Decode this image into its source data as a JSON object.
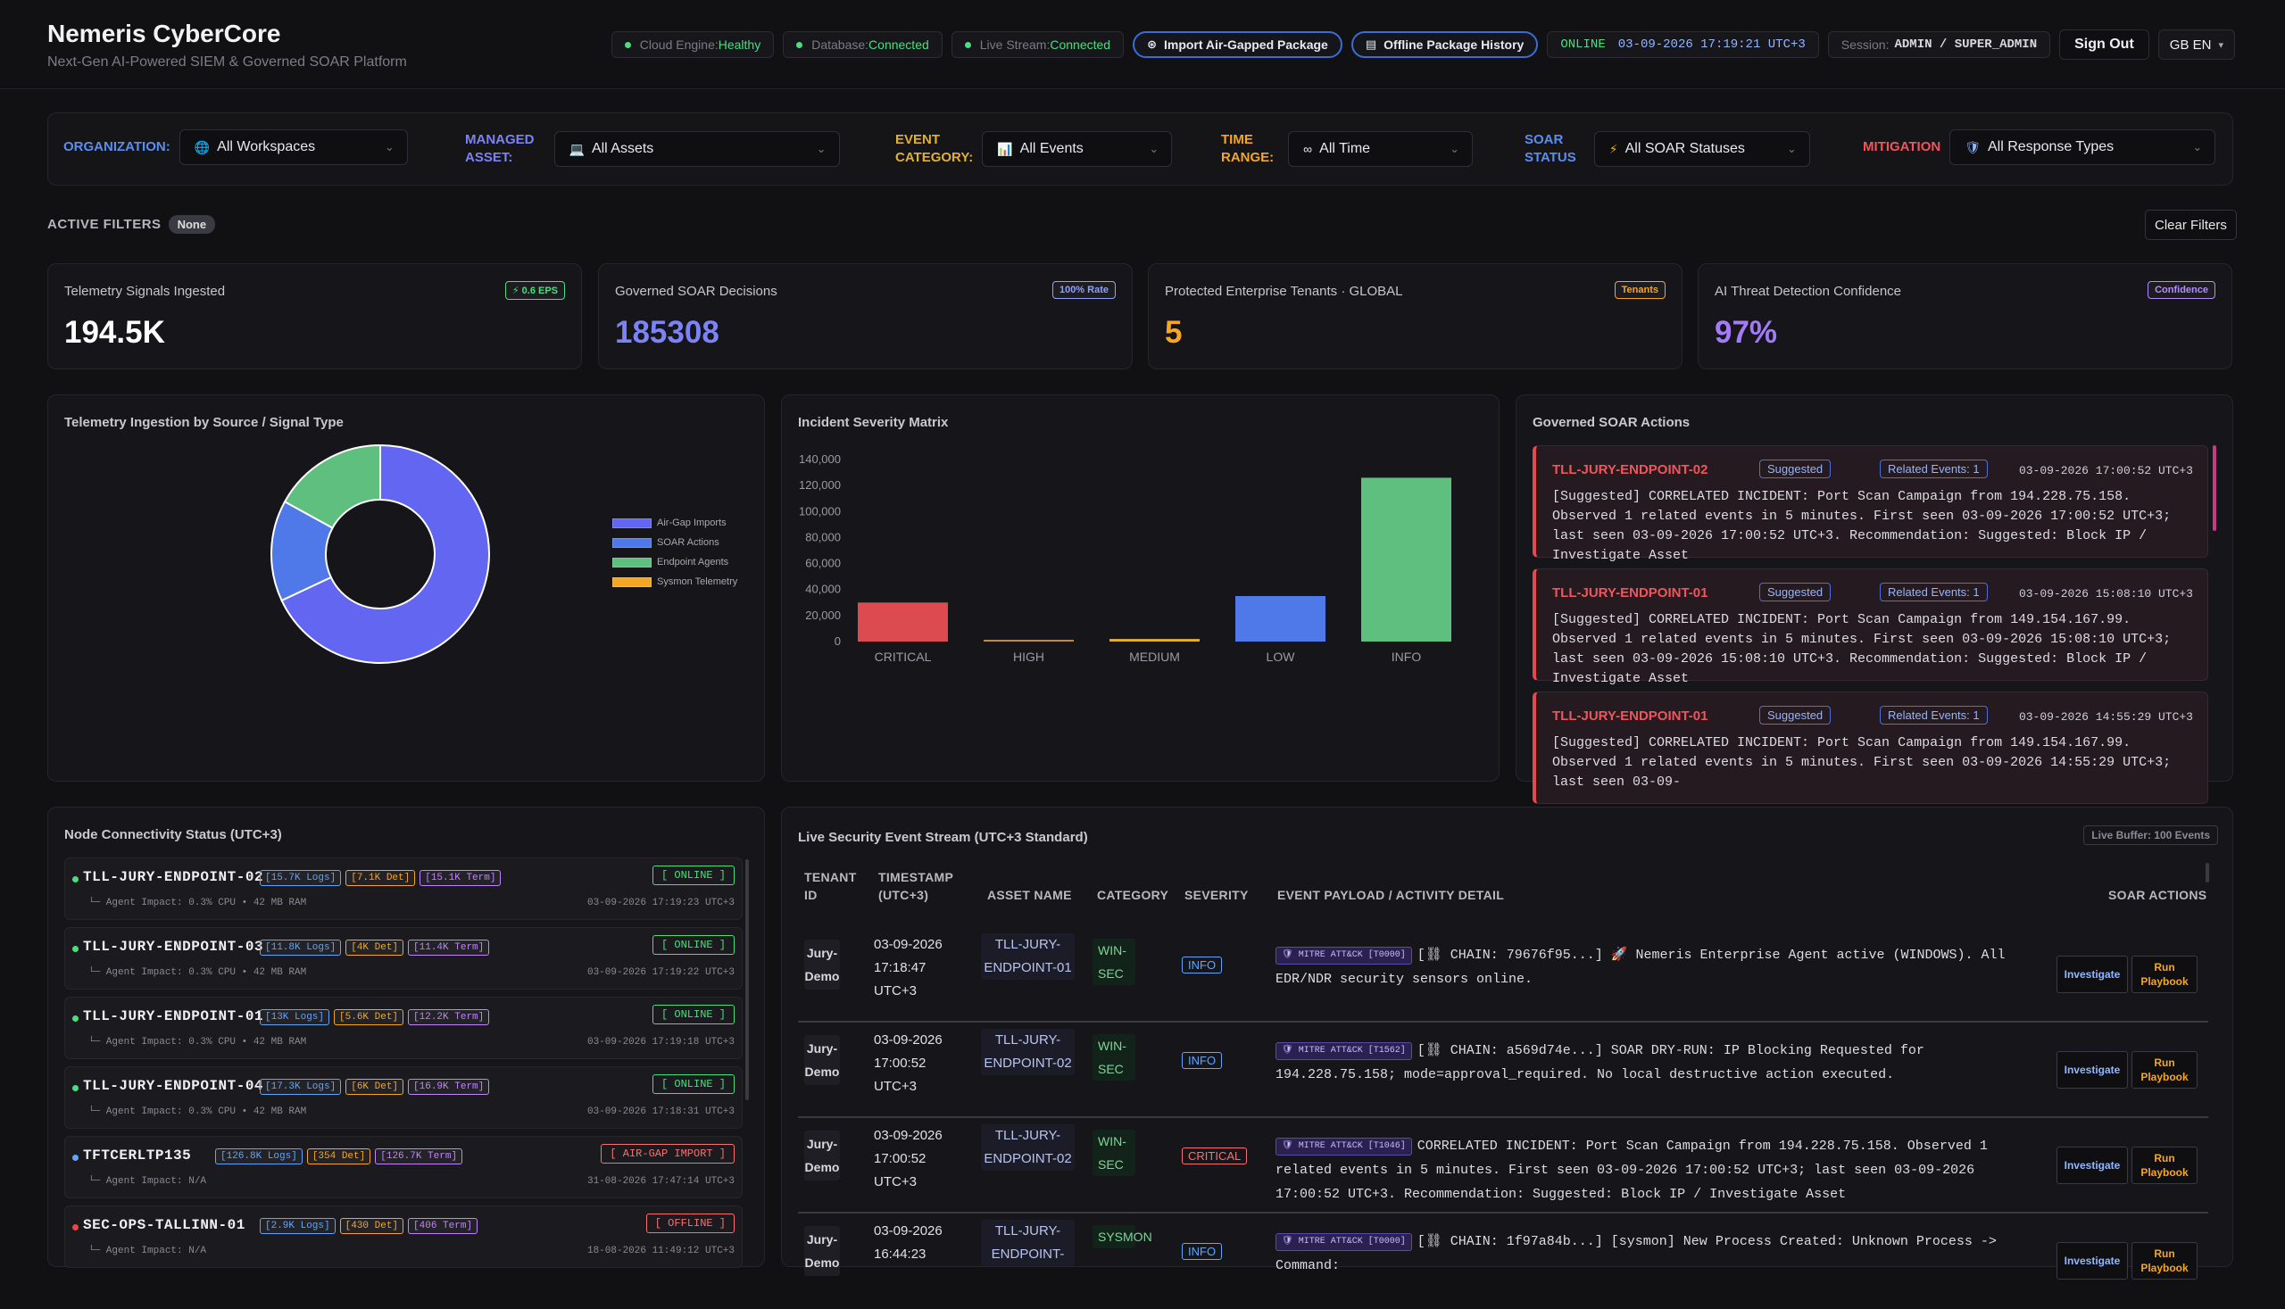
{
  "header": {
    "title": "Nemeris CyberCore",
    "subtitle": "Next-Gen AI-Powered SIEM & Governed SOAR Platform",
    "cloud_label": "Cloud Engine:",
    "cloud_value": "Healthy",
    "db_label": "Database:",
    "db_value": "Connected",
    "stream_label": "Live Stream:",
    "stream_value": "Connected",
    "import_btn": "Import Air-Gapped Package",
    "history_btn": "Offline Package History",
    "online": "ONLINE",
    "clock": "03-09-2026 17:19:21 UTC+3",
    "session_label": "Session:",
    "session_value": "ADMIN / SUPER_ADMIN",
    "signout": "Sign Out",
    "lang": "GB EN"
  },
  "filters": {
    "org_label": "ORGANIZATION:",
    "org_value": "All Workspaces",
    "asset_label_1": "MANAGED",
    "asset_label_2": "ASSET:",
    "asset_value": "All Assets",
    "cat_label_1": "EVENT",
    "cat_label_2": "CATEGORY:",
    "cat_value": "All Events",
    "time_label_1": "TIME",
    "time_label_2": "RANGE:",
    "time_value": "All Time",
    "soar_label_1": "SOAR",
    "soar_label_2": "STATUS",
    "soar_value": "All SOAR Statuses",
    "mit_label": "MITIGATION",
    "mit_value": "All Response Types",
    "active_label": "ACTIVE FILTERS",
    "active_value": "None",
    "clear": "Clear Filters"
  },
  "kpis": [
    {
      "title": "Telemetry Signals Ingested",
      "badge": "⚡ 0.6 EPS",
      "value": "194.5K",
      "color": "#ffffff",
      "badge_color": "#4ade80"
    },
    {
      "title": "Governed SOAR Decisions",
      "badge": "100% Rate",
      "value": "185308",
      "color": "#7b83f5",
      "badge_color": "#8fa0ff"
    },
    {
      "title": "Protected Enterprise Tenants · GLOBAL",
      "badge": "Tenants",
      "value": "5",
      "color": "#f5a623",
      "badge_color": "#f5a623"
    },
    {
      "title": "AI Threat Detection Confidence",
      "badge": "Confidence",
      "value": "97%",
      "color": "#a37bf5",
      "badge_color": "#b58cff"
    }
  ],
  "donut": {
    "title": "Telemetry Ingestion by Source / Signal Type",
    "legend": [
      "Air-Gap Imports",
      "SOAR Actions",
      "Endpoint Agents",
      "Sysmon Telemetry"
    ],
    "colors": [
      "#6366f1",
      "#4f78e8",
      "#5fbf7f",
      "#f5a623"
    ],
    "shares": [
      0.68,
      0.15,
      0.17,
      0.0
    ]
  },
  "chart_data": {
    "type": "bar",
    "title": "Incident Severity Matrix",
    "categories": [
      "CRITICAL",
      "HIGH",
      "MEDIUM",
      "LOW",
      "INFO"
    ],
    "values": [
      30000,
      1000,
      2000,
      35000,
      126000
    ],
    "colors": [
      "#dc4b4f",
      "#c58a2a",
      "#e0b030",
      "#4f78e8",
      "#5fbf7f"
    ],
    "ylim": [
      0,
      140000
    ],
    "yticks": [
      "140,000",
      "120,000",
      "100,000",
      "80,000",
      "60,000",
      "40,000",
      "20,000",
      "0"
    ],
    "grid": false
  },
  "soar": {
    "title": "Governed SOAR Actions",
    "items": [
      {
        "host": "TLL-JURY-ENDPOINT-02",
        "tag": "Suggested",
        "related": "Related Events: 1",
        "time": "03-09-2026 17:00:52 UTC+3",
        "body": "[Suggested] CORRELATED INCIDENT: Port Scan Campaign from 194.228.75.158. Observed 1 related events in 5 minutes. First seen 03-09-2026 17:00:52 UTC+3; last seen 03-09-2026 17:00:52 UTC+3. Recommendation: Suggested: Block IP / Investigate Asset"
      },
      {
        "host": "TLL-JURY-ENDPOINT-01",
        "tag": "Suggested",
        "related": "Related Events: 1",
        "time": "03-09-2026 15:08:10 UTC+3",
        "body": "[Suggested] CORRELATED INCIDENT: Port Scan Campaign from 149.154.167.99. Observed 1 related events in 5 minutes. First seen 03-09-2026 15:08:10 UTC+3; last seen 03-09-2026 15:08:10 UTC+3. Recommendation: Suggested: Block IP / Investigate Asset"
      },
      {
        "host": "TLL-JURY-ENDPOINT-01",
        "tag": "Suggested",
        "related": "Related Events: 1",
        "time": "03-09-2026 14:55:29 UTC+3",
        "body": "[Suggested] CORRELATED INCIDENT: Port Scan Campaign from 149.154.167.99. Observed 1 related events in 5 minutes. First seen 03-09-2026 14:55:29 UTC+3; last seen 03-09-"
      }
    ]
  },
  "nodes": {
    "title": "Node Connectivity Status (UTC+3)",
    "items": [
      {
        "name": "TLL-JURY-ENDPOINT-02",
        "logs": "[15.7K Logs]",
        "det": "[7.1K Det]",
        "term": "[15.1K Term]",
        "sub": "└─ Agent Impact: 0.3% CPU  •  42 MB RAM",
        "status": "[ ONLINE ]",
        "time": "03-09-2026 17:19:23 UTC+3",
        "dot": "#4ade80",
        "scolor": "#4ade80"
      },
      {
        "name": "TLL-JURY-ENDPOINT-03",
        "logs": "[11.8K Logs]",
        "det": "[4K Det]",
        "term": "[11.4K Term]",
        "sub": "└─ Agent Impact: 0.3% CPU  •  42 MB RAM",
        "status": "[ ONLINE ]",
        "time": "03-09-2026 17:19:22 UTC+3",
        "dot": "#4ade80",
        "scolor": "#4ade80"
      },
      {
        "name": "TLL-JURY-ENDPOINT-01",
        "logs": "[13K Logs]",
        "det": "[5.6K Det]",
        "term": "[12.2K Term]",
        "sub": "└─ Agent Impact: 0.3% CPU  •  42 MB RAM",
        "status": "[ ONLINE ]",
        "time": "03-09-2026 17:19:18 UTC+3",
        "dot": "#4ade80",
        "scolor": "#4ade80"
      },
      {
        "name": "TLL-JURY-ENDPOINT-04",
        "logs": "[17.3K Logs]",
        "det": "[6K Det]",
        "term": "[16.9K Term]",
        "sub": "└─ Agent Impact: 0.3% CPU  •  42 MB RAM",
        "status": "[ ONLINE ]",
        "time": "03-09-2026 17:18:31 UTC+3",
        "dot": "#4ade80",
        "scolor": "#4ade80"
      },
      {
        "name": "TFTCERLTP135",
        "logs": "[126.8K Logs]",
        "det": "[354 Det]",
        "term": "[126.7K Term]",
        "sub": "└─ Agent Impact: N/A",
        "status": "[ AIR-GAP IMPORT ]",
        "time": "31-08-2026 17:47:14 UTC+3",
        "dot": "#60a5fa",
        "scolor": "#f87171"
      },
      {
        "name": "SEC-OPS-TALLINN-01",
        "logs": "[2.9K Logs]",
        "det": "[430 Det]",
        "term": "[406 Term]",
        "sub": "└─ Agent Impact: N/A",
        "status": "[ OFFLINE ]",
        "time": "18-08-2026 11:49:12 UTC+3",
        "dot": "#ef4444",
        "scolor": "#f87171"
      }
    ]
  },
  "events": {
    "title": "Live Security Event Stream (UTC+3 Standard)",
    "buffer": "Live Buffer: 100 Events",
    "headers": {
      "tenant": "TENANT ID",
      "ts": "TIMESTAMP (UTC+3)",
      "asset": "ASSET NAME",
      "cat": "CATEGORY",
      "sev": "SEVERITY",
      "payload": "EVENT PAYLOAD / ACTIVITY DETAIL",
      "actions": "SOAR ACTIONS"
    },
    "rows": [
      {
        "tenant": "Jury-Demo",
        "ts": "03-09-2026 17:18:47 UTC+3",
        "asset": "TLL-JURY-ENDPOINT-01",
        "cat": "WIN-SEC",
        "sev": "INFO",
        "sev_color": "#60a5fa",
        "mitre": "🛡 MITRE ATT&CK [T0000]",
        "payload": "[⛓ CHAIN: 79676f95...] 🚀 Nemeris Enterprise Agent active (WINDOWS). All EDR/NDR security sensors online.",
        "inv": "Investigate",
        "run": "Run Playbook"
      },
      {
        "tenant": "Jury-Demo",
        "ts": "03-09-2026 17:00:52 UTC+3",
        "asset": "TLL-JURY-ENDPOINT-02",
        "cat": "WIN-SEC",
        "sev": "INFO",
        "sev_color": "#60a5fa",
        "mitre": "🛡 MITRE ATT&CK [T1562]",
        "payload": "[⛓ CHAIN: a569d74e...] SOAR DRY-RUN: IP Blocking Requested for 194.228.75.158; mode=approval_required. No local destructive action executed.",
        "inv": "Investigate",
        "run": "Run Playbook"
      },
      {
        "tenant": "Jury-Demo",
        "ts": "03-09-2026 17:00:52 UTC+3",
        "asset": "TLL-JURY-ENDPOINT-02",
        "cat": "WIN-SEC",
        "sev": "CRITICAL",
        "sev_color": "#f87171",
        "mitre": "🛡 MITRE ATT&CK [T1046]",
        "payload": "CORRELATED INCIDENT: Port Scan Campaign from 194.228.75.158. Observed 1 related events in 5 minutes. First seen 03-09-2026 17:00:52 UTC+3; last seen 03-09-2026 17:00:52 UTC+3. Recommendation: Suggested: Block IP / Investigate Asset",
        "inv": "Investigate",
        "run": "Run Playbook"
      },
      {
        "tenant": "Jury-Demo",
        "ts": "03-09-2026 16:44:23",
        "asset": "TLL-JURY-ENDPOINT-",
        "cat": "SYSMON",
        "sev": "INFO",
        "sev_color": "#60a5fa",
        "mitre": "🛡 MITRE ATT&CK [T0000]",
        "payload": "[⛓ CHAIN: 1f97a84b...] [sysmon] New Process Created: Unknown Process -> Command:",
        "inv": "Investigate",
        "run": "Run Playbook"
      }
    ]
  }
}
